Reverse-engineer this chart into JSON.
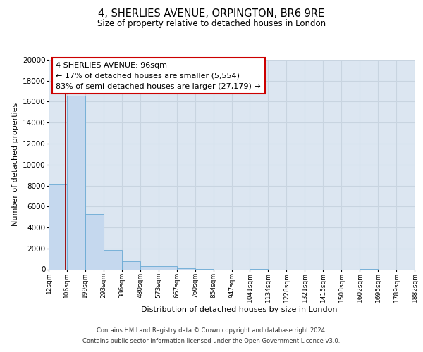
{
  "title": "4, SHERLIES AVENUE, ORPINGTON, BR6 9RE",
  "subtitle": "Size of property relative to detached houses in London",
  "xlabel": "Distribution of detached houses by size in London",
  "ylabel": "Number of detached properties",
  "bar_values": [
    8100,
    16600,
    5300,
    1850,
    750,
    300,
    300,
    100,
    50,
    0,
    0,
    50,
    0,
    0,
    0,
    0,
    0,
    50,
    0,
    0
  ],
  "bin_labels": [
    "12sqm",
    "106sqm",
    "199sqm",
    "293sqm",
    "386sqm",
    "480sqm",
    "573sqm",
    "667sqm",
    "760sqm",
    "854sqm",
    "947sqm",
    "1041sqm",
    "1134sqm",
    "1228sqm",
    "1321sqm",
    "1415sqm",
    "1508sqm",
    "1602sqm",
    "1695sqm",
    "1789sqm",
    "1882sqm"
  ],
  "bar_color": "#c5d8ee",
  "bar_edge_color": "#6aaad4",
  "background_color": "#dce6f1",
  "grid_color": "#c8d4e0",
  "red_line_x": 0.93,
  "annotation_line1": "4 SHERLIES AVENUE: 96sqm",
  "annotation_line2": "← 17% of detached houses are smaller (5,554)",
  "annotation_line3": "83% of semi-detached houses are larger (27,179) →",
  "yticks": [
    0,
    2000,
    4000,
    6000,
    8000,
    10000,
    12000,
    14000,
    16000,
    18000,
    20000
  ],
  "ylim_max": 20000,
  "footer_line1": "Contains HM Land Registry data © Crown copyright and database right 2024.",
  "footer_line2": "Contains public sector information licensed under the Open Government Licence v3.0."
}
